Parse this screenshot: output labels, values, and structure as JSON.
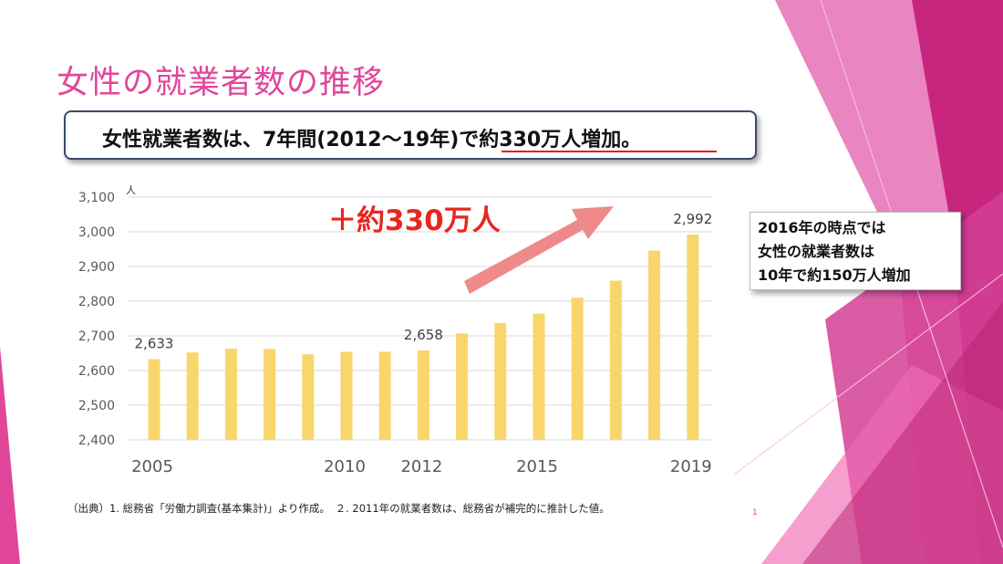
{
  "slide": {
    "title": "女性の就業者数の推移",
    "callout": {
      "prefix": "女性就業者数は、7年間(2012～19年)で",
      "highlight": "約330万人増加。"
    },
    "increase_label": "＋約330万人",
    "note_lines": [
      "2016年の時点では",
      "女性の就業者数は",
      "10年で約150万人増加"
    ],
    "source_note": "（出典）1. 総務省「労働力調査(基本集計)」より作成。　２. 2011年の就業者数は、総務省が補完的に推計した値。",
    "page_number": "1",
    "colors": {
      "title": "#e0479a",
      "bar": "#f9d66b",
      "arrow": "#ef8a8a",
      "increase_text": "#e8261f",
      "accent_pink": "#c8267e"
    }
  },
  "chart_data": {
    "type": "bar",
    "y_unit_label": "人",
    "categories": [
      "2005",
      "2006",
      "2007",
      "2008",
      "2009",
      "2010",
      "2011",
      "2012",
      "2013",
      "2014",
      "2015",
      "2016",
      "2017",
      "2018",
      "2019"
    ],
    "values": [
      2633,
      2652,
      2663,
      2662,
      2647,
      2654,
      2654,
      2658,
      2707,
      2737,
      2764,
      2810,
      2859,
      2946,
      2992
    ],
    "x_tick_labels": [
      "2005",
      "2010",
      "2012",
      "2015",
      "2019"
    ],
    "data_labels": [
      {
        "category": "2005",
        "text": "2,633"
      },
      {
        "category": "2012",
        "text": "2,658"
      },
      {
        "category": "2019",
        "text": "2,992"
      }
    ],
    "y_ticks": [
      "2,400",
      "2,500",
      "2,600",
      "2,700",
      "2,800",
      "2,900",
      "3,000",
      "3,100"
    ],
    "ylim": [
      2400,
      3100
    ],
    "grid": true
  }
}
